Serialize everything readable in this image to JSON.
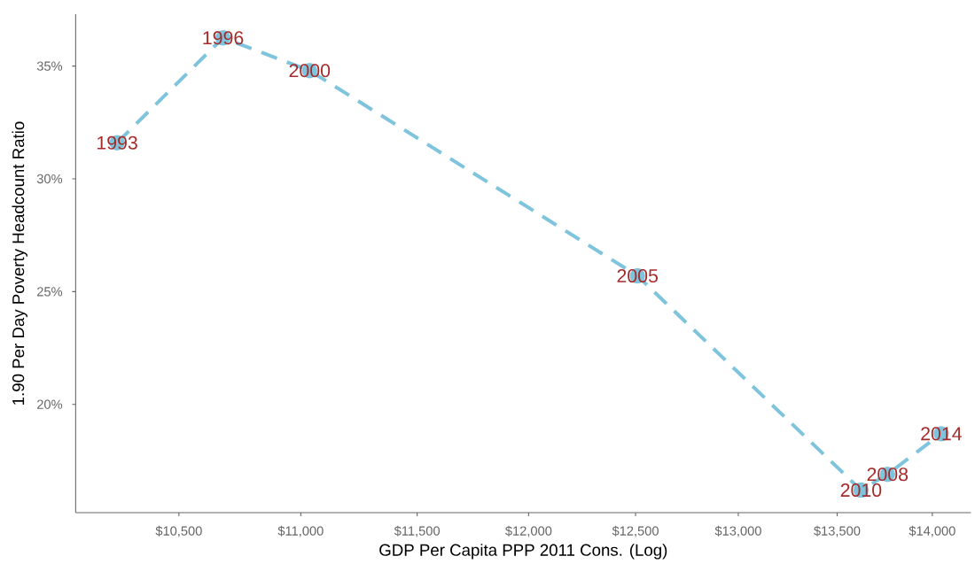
{
  "chart_data": {
    "type": "line",
    "xlabel": "GDP Per Capita PPP 2011 Cons. (Log)",
    "ylabel": "1.90 Per Day Poverty Headcount Ratio",
    "x": [
      10255,
      10678,
      11037,
      12509,
      13624,
      13762,
      14048
    ],
    "values": [
      31.6,
      36.25,
      34.8,
      25.7,
      16.2,
      16.9,
      18.7
    ],
    "color": "#7ec4dc",
    "marker": "circle",
    "line_style": "dashed",
    "log": "x",
    "grid": false,
    "xlim": [
      10094,
      14208
    ],
    "ylim": [
      15.2,
      37.3
    ],
    "xticks": [
      {
        "value": 10500,
        "label": "$10,500"
      },
      {
        "value": 11000,
        "label": "$11,000"
      },
      {
        "value": 11500,
        "label": "$11,500"
      },
      {
        "value": 12000,
        "label": "$12,000"
      },
      {
        "value": 12500,
        "label": "$12,500"
      },
      {
        "value": 13000,
        "label": "$13,000"
      },
      {
        "value": 13500,
        "label": "$13,500"
      },
      {
        "value": 14000,
        "label": "$14,000"
      }
    ],
    "yticks": [
      {
        "value": 20,
        "label": "20%"
      },
      {
        "value": 25,
        "label": "25%"
      },
      {
        "value": 30,
        "label": "30%"
      },
      {
        "value": 35,
        "label": "35%"
      }
    ],
    "annotations": [
      {
        "text": "1993",
        "x": 10255,
        "y": 31.6
      },
      {
        "text": "1996",
        "x": 10678,
        "y": 36.25
      },
      {
        "text": "2000",
        "x": 11037,
        "y": 34.8
      },
      {
        "text": "2005",
        "x": 12509,
        "y": 25.7
      },
      {
        "text": "2010",
        "x": 13624,
        "y": 16.2
      },
      {
        "text": "2008",
        "x": 13762,
        "y": 16.9
      },
      {
        "text": "2014",
        "x": 14048,
        "y": 18.7
      }
    ]
  }
}
